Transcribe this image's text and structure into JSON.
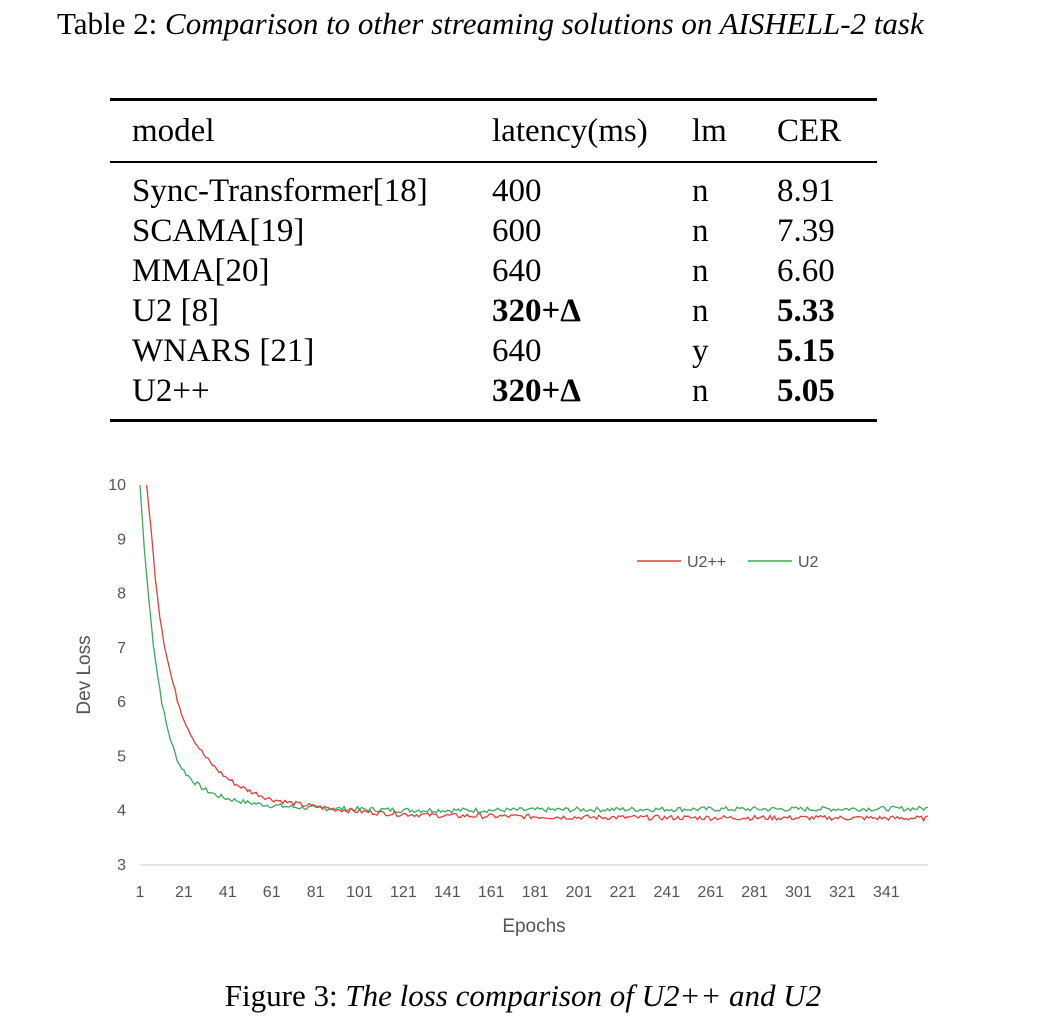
{
  "table": {
    "caption_label": "Table 2:",
    "caption_text": "Comparison to other streaming solutions on AISHELL-2 task",
    "headers": [
      "model",
      "latency(ms)",
      "lm",
      "CER"
    ],
    "rows": [
      {
        "model": "Sync-Transformer[18]",
        "latency": "400",
        "lm": "n",
        "cer": "8.91",
        "latency_bold": false,
        "cer_bold": false
      },
      {
        "model": "SCAMA[19]",
        "latency": "600",
        "lm": "n",
        "cer": "7.39",
        "latency_bold": false,
        "cer_bold": false
      },
      {
        "model": "MMA[20]",
        "latency": "640",
        "lm": "n",
        "cer": "6.60",
        "latency_bold": false,
        "cer_bold": false
      },
      {
        "model": "U2 [8]",
        "latency": "320+Δ",
        "lm": "n",
        "cer": "5.33",
        "latency_bold": true,
        "cer_bold": true
      },
      {
        "model": "WNARS [21]",
        "latency": "640",
        "lm": "y",
        "cer": "5.15",
        "latency_bold": false,
        "cer_bold": true
      },
      {
        "model": "U2++",
        "latency": "320+Δ",
        "lm": "n",
        "cer": "5.05",
        "latency_bold": true,
        "cer_bold": true
      }
    ]
  },
  "chart_data": {
    "type": "line",
    "title": "",
    "xlabel": "Epochs",
    "ylabel": "Dev Loss",
    "ylim": [
      3,
      10
    ],
    "xlim": [
      1,
      360
    ],
    "yticks": [
      3,
      4,
      5,
      6,
      7,
      8,
      9,
      10
    ],
    "xticks": [
      1,
      21,
      41,
      61,
      81,
      101,
      121,
      141,
      161,
      181,
      201,
      221,
      241,
      261,
      281,
      301,
      321,
      341
    ],
    "legend_position": "top-right",
    "series": [
      {
        "name": "U2++",
        "color": "#e0403a",
        "points": [
          [
            4,
            10
          ],
          [
            6,
            9.2
          ],
          [
            8,
            8.3
          ],
          [
            10,
            7.6
          ],
          [
            12,
            7.1
          ],
          [
            14,
            6.7
          ],
          [
            16,
            6.35
          ],
          [
            18,
            6.05
          ],
          [
            20,
            5.8
          ],
          [
            22,
            5.6
          ],
          [
            25,
            5.35
          ],
          [
            28,
            5.15
          ],
          [
            31,
            4.98
          ],
          [
            35,
            4.8
          ],
          [
            40,
            4.62
          ],
          [
            45,
            4.48
          ],
          [
            50,
            4.38
          ],
          [
            55,
            4.3
          ],
          [
            60,
            4.22
          ],
          [
            70,
            4.14
          ],
          [
            80,
            4.08
          ],
          [
            90,
            4.03
          ],
          [
            100,
            3.99
          ],
          [
            110,
            3.96
          ],
          [
            120,
            3.94
          ],
          [
            140,
            3.91
          ],
          [
            160,
            3.9
          ],
          [
            200,
            3.88
          ],
          [
            250,
            3.87
          ],
          [
            300,
            3.87
          ],
          [
            360,
            3.86
          ]
        ]
      },
      {
        "name": "U2",
        "color": "#3daa5c",
        "points": [
          [
            1,
            10
          ],
          [
            3,
            8.8
          ],
          [
            5,
            7.9
          ],
          [
            7,
            7.1
          ],
          [
            9,
            6.5
          ],
          [
            11,
            6.0
          ],
          [
            13,
            5.6
          ],
          [
            15,
            5.3
          ],
          [
            17,
            5.05
          ],
          [
            19,
            4.85
          ],
          [
            22,
            4.68
          ],
          [
            26,
            4.52
          ],
          [
            30,
            4.4
          ],
          [
            35,
            4.3
          ],
          [
            40,
            4.23
          ],
          [
            50,
            4.15
          ],
          [
            60,
            4.1
          ],
          [
            70,
            4.07
          ],
          [
            80,
            4.05
          ],
          [
            100,
            4.03
          ],
          [
            120,
            4.01
          ],
          [
            160,
            4.01
          ],
          [
            200,
            4.02
          ],
          [
            250,
            4.03
          ],
          [
            300,
            4.03
          ],
          [
            360,
            4.04
          ]
        ]
      }
    ]
  },
  "figure": {
    "caption_label": "Figure 3:",
    "caption_text": "The loss comparison of U2++ and U2"
  }
}
